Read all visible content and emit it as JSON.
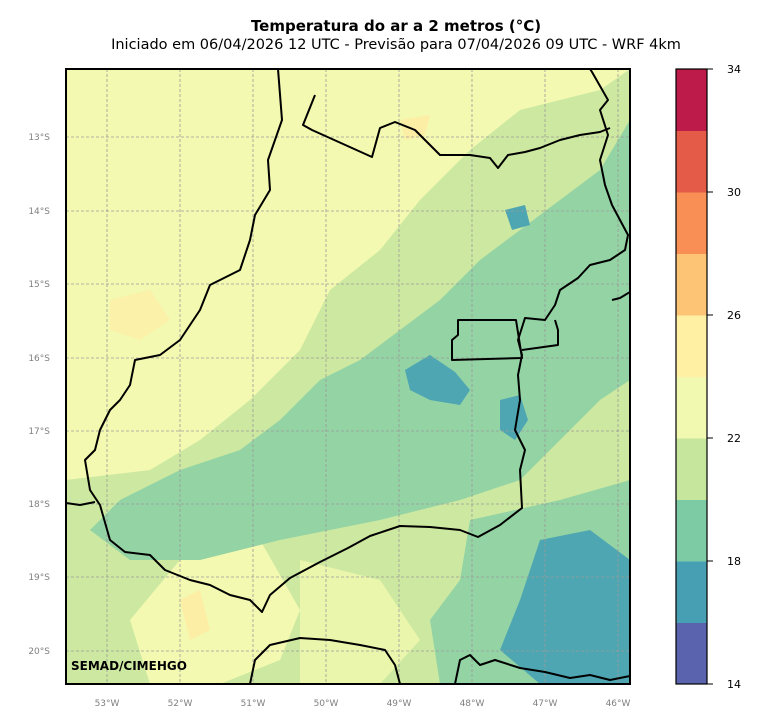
{
  "header": {
    "title": "Temperatura do ar a 2 metros (°C)",
    "subtitle": "Iniciado em 06/04/2026 12 UTC - Previsão para 07/04/2026 09 UTC - WRF 4km"
  },
  "map": {
    "credit": "SEMAD/CIMEHGO",
    "lat_labels": [
      "13°S",
      "14°S",
      "15°S",
      "16°S",
      "17°S",
      "18°S",
      "19°S",
      "20°S"
    ],
    "lon_labels": [
      "53°W",
      "52°W",
      "51°W",
      "50°W",
      "49°W",
      "48°W",
      "47°W",
      "46°W"
    ],
    "field_colors": {
      "light_yellow": "#f3f9b0",
      "pale_yellow": "#fdeea6",
      "light_green": "#cde9a1",
      "mid_green": "#94d3a4",
      "teal": "#4ea6b3",
      "boundary": "#000000",
      "grid": "#9a9a9a"
    }
  },
  "colorbar": {
    "ticks": [
      "34",
      "30",
      "26",
      "22",
      "18",
      "14"
    ],
    "colors": [
      "#5a63ad",
      "#479fb3",
      "#7dcba4",
      "#c6e69e",
      "#f1f9b0",
      "#fff0a3",
      "#fdc475",
      "#fa8f56",
      "#e45b48",
      "#bd1b4a"
    ]
  }
}
